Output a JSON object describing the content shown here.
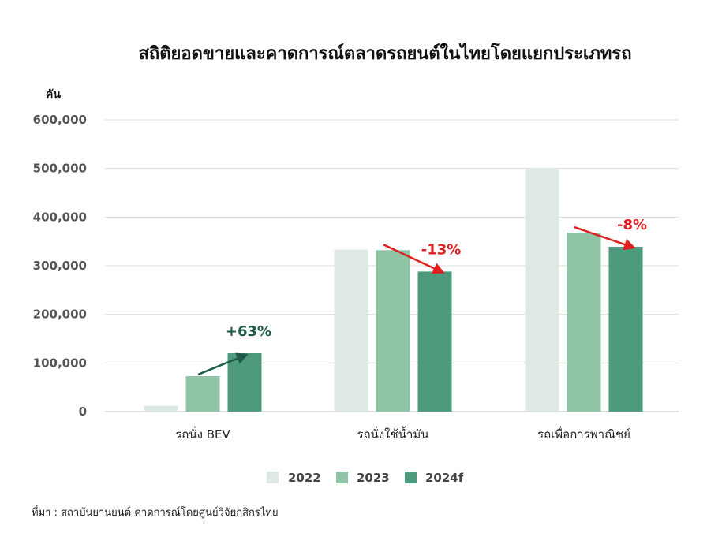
{
  "chart_data": {
    "type": "bar",
    "title": "สถิติยอดขายและคาดการณ์ตลาดรถยนต์ในไทยโดยแยกประเภทรถ",
    "ylabel": "คัน",
    "xlabel": "",
    "ylim": [
      0,
      600000
    ],
    "yticks": [
      0,
      100000,
      200000,
      300000,
      400000,
      500000,
      600000
    ],
    "ytick_labels": [
      "0",
      "100,000",
      "200,000",
      "300,000",
      "400,000",
      "500,000",
      "600,000"
    ],
    "grid": true,
    "legend_placement": "bottom-center",
    "categories": [
      "รถนั่ง BEV",
      "รถนั่งใช้น้ำมัน",
      "รถเพื่อการพาณิชย์"
    ],
    "series": [
      {
        "name": "2022",
        "color": "#dde9e2",
        "values": [
          12000,
          333000,
          499000
        ]
      },
      {
        "name": "2023",
        "color": "#8fc4a7",
        "values": [
          73000,
          332000,
          368000
        ]
      },
      {
        "name": "2024f",
        "color": "#4e9a7c",
        "values": [
          120000,
          288000,
          339000
        ]
      }
    ],
    "annotations": [
      {
        "text": "+63%",
        "category_index": 0,
        "color": "#1f5a4a"
      },
      {
        "text": "-13%",
        "category_index": 1,
        "color": "#e02020"
      },
      {
        "text": "-8%",
        "category_index": 2,
        "color": "#e02020"
      }
    ]
  },
  "source": "ที่มา : สถาบันยานยนต์ คาดการณ์โดยศูนย์วิจัยกสิกรไทย"
}
